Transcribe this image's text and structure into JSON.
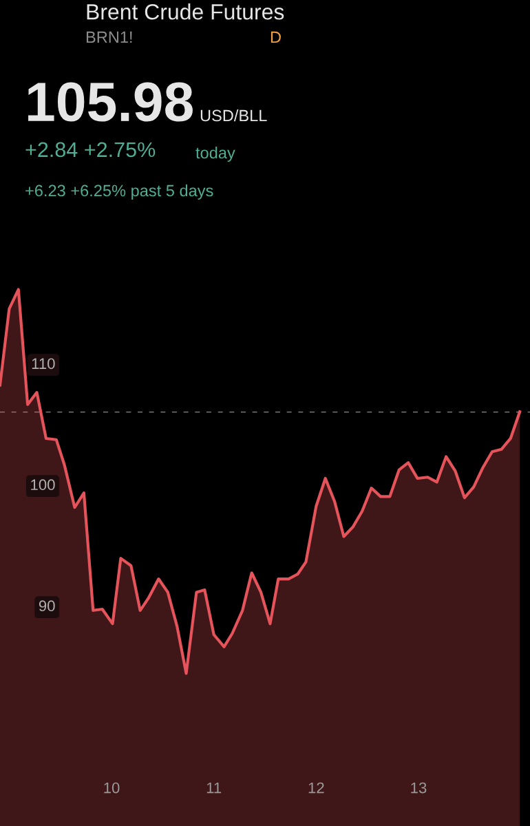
{
  "chart_data": {
    "type": "area",
    "title": "Brent Crude Futures",
    "subtitle": "BRN1!",
    "annotations": [
      "105.98",
      "USD/BLL",
      "+2.84 +2.75%",
      "today",
      "+6.23 +6.25% past 5 days",
      "D"
    ],
    "x": [
      8.91,
      9.0,
      9.09,
      9.18,
      9.27,
      9.36,
      9.46,
      9.54,
      9.64,
      9.73,
      9.82,
      9.91,
      10.01,
      10.09,
      10.19,
      10.28,
      10.36,
      10.46,
      10.55,
      10.64,
      10.73,
      10.83,
      10.91,
      11.0,
      11.1,
      11.18,
      11.28,
      11.37,
      11.46,
      11.55,
      11.63,
      11.73,
      11.82,
      11.9,
      12.0,
      12.09,
      12.18,
      12.27,
      12.36,
      12.45,
      12.54,
      12.63,
      12.72,
      12.81,
      12.9,
      12.99,
      13.09,
      13.18,
      13.27,
      13.36,
      13.45,
      13.54,
      13.63,
      13.72,
      13.81,
      13.9,
      13.99
    ],
    "series": [
      {
        "color": "#e5535b",
        "values": [
          108.2,
          114.5,
          116.1,
          106.6,
          107.6,
          103.8,
          103.7,
          101.6,
          98.1,
          99.3,
          89.6,
          89.7,
          88.5,
          93.9,
          93.3,
          89.6,
          90.6,
          92.2,
          91.1,
          88.3,
          84.4,
          91.1,
          91.3,
          87.6,
          86.6,
          87.7,
          89.6,
          92.7,
          91.1,
          88.5,
          92.2,
          92.2,
          92.6,
          93.6,
          98.2,
          100.5,
          98.6,
          95.7,
          96.5,
          97.8,
          99.7,
          99.0,
          99.0,
          101.2,
          101.8,
          100.5,
          100.6,
          100.2,
          102.3,
          101.1,
          98.9,
          99.8,
          101.4,
          102.7,
          102.9,
          103.8,
          106.0
        ]
      }
    ],
    "xlim": [
      8.91,
      14.09
    ],
    "ylim": [
      71.8,
      140
    ],
    "xticks": [
      10,
      11,
      12,
      13
    ],
    "yticks": [
      90,
      100,
      110
    ],
    "ref_lines": [
      {
        "axis": "y",
        "value": 105.98,
        "color": "#8a8a8a",
        "line_style": "dashed"
      }
    ],
    "grid": false,
    "legend": false,
    "marker": "none",
    "line_style": "solid"
  }
}
